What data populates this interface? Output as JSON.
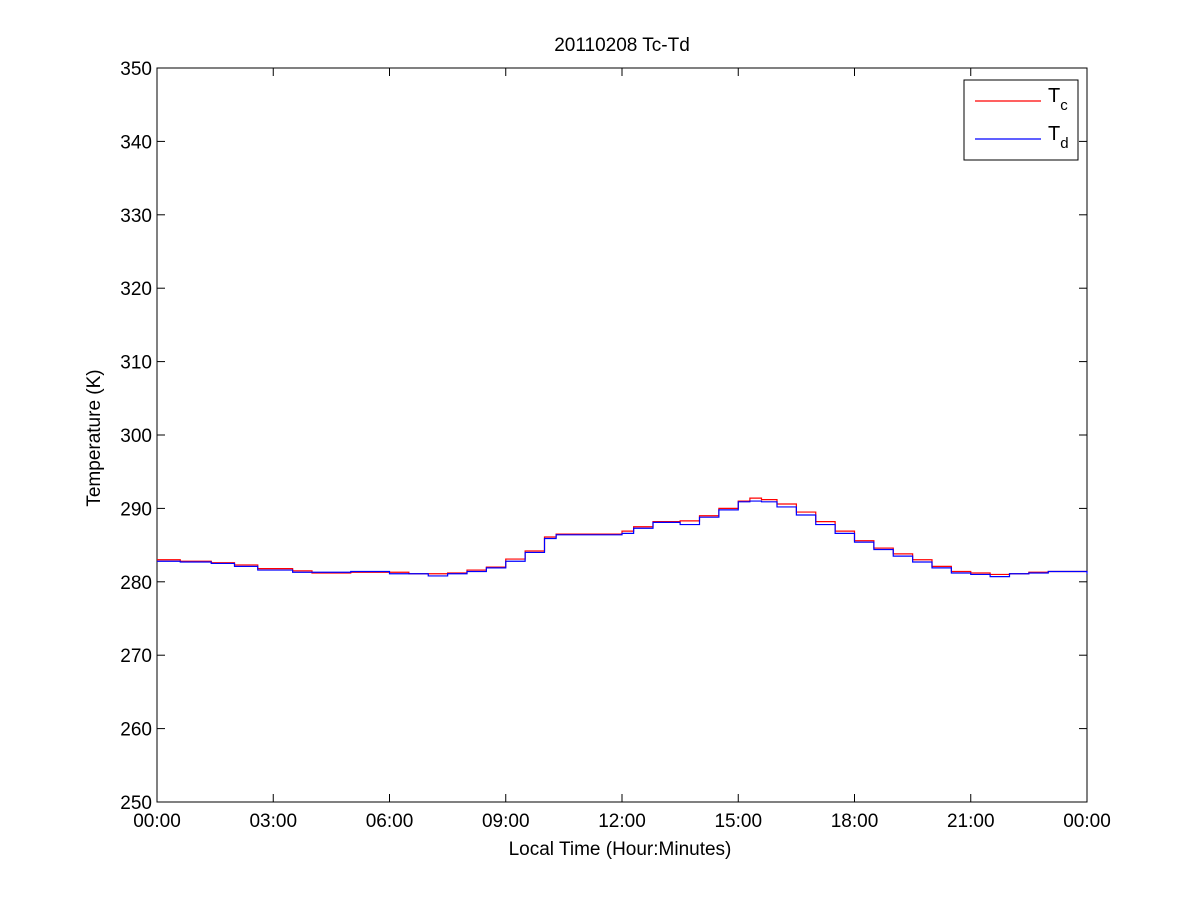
{
  "chart_data": {
    "type": "line",
    "title": "20110208 Tc-Td",
    "xlabel": "Local Time (Hour:Minutes)",
    "ylabel": "Temperature (K)",
    "xlim": [
      0,
      24
    ],
    "ylim": [
      250,
      350
    ],
    "x_ticks": [
      0,
      3,
      6,
      9,
      12,
      15,
      18,
      21,
      24
    ],
    "x_tick_labels": [
      "00:00",
      "03:00",
      "06:00",
      "09:00",
      "12:00",
      "15:00",
      "18:00",
      "21:00",
      "00:00"
    ],
    "y_ticks": [
      250,
      260,
      270,
      280,
      290,
      300,
      310,
      320,
      330,
      340,
      350
    ],
    "y_tick_labels": [
      "250",
      "260",
      "270",
      "280",
      "290",
      "300",
      "310",
      "320",
      "330",
      "340",
      "350"
    ],
    "grid": false,
    "legend_position": "top-right",
    "series": [
      {
        "name": "Tc",
        "legend_main": "T",
        "legend_sub": "c",
        "color": "#ff0000",
        "x": [
          0,
          0.6,
          1.4,
          2.0,
          2.6,
          3.5,
          4.0,
          4.5,
          5.0,
          6.0,
          6.5,
          7.0,
          7.5,
          8.0,
          8.5,
          9.0,
          9.5,
          10.0,
          10.3,
          10.8,
          11.5,
          12.0,
          12.3,
          12.8,
          13.3,
          13.5,
          14.0,
          14.5,
          15.0,
          15.3,
          15.6,
          16.0,
          16.5,
          17.0,
          17.5,
          18.0,
          18.5,
          19.0,
          19.5,
          20.0,
          20.5,
          21.0,
          21.5,
          22.0,
          22.5,
          23.0,
          23.5,
          23.9,
          24.0
        ],
        "y": [
          283.0,
          282.8,
          282.6,
          282.3,
          281.8,
          281.5,
          281.2,
          281.2,
          281.3,
          281.3,
          281.1,
          281.1,
          281.2,
          281.6,
          282.0,
          283.1,
          284.2,
          286.1,
          286.5,
          286.5,
          286.5,
          286.9,
          287.5,
          288.2,
          288.2,
          288.3,
          289.0,
          290.0,
          291.0,
          291.4,
          291.2,
          290.6,
          289.5,
          288.2,
          286.9,
          285.6,
          284.6,
          283.8,
          283.0,
          282.1,
          281.4,
          281.2,
          281.0,
          281.1,
          281.3,
          281.4,
          281.4,
          281.4,
          281.3
        ]
      },
      {
        "name": "Td",
        "legend_main": "T",
        "legend_sub": "d",
        "color": "#0000ff",
        "x": [
          0,
          0.6,
          1.4,
          2.0,
          2.6,
          3.5,
          4.0,
          4.5,
          5.0,
          6.0,
          6.5,
          7.0,
          7.5,
          8.0,
          8.5,
          9.0,
          9.5,
          10.0,
          10.3,
          10.8,
          11.5,
          12.0,
          12.3,
          12.8,
          13.3,
          13.5,
          14.0,
          14.5,
          15.0,
          15.3,
          15.6,
          16.0,
          16.5,
          17.0,
          17.5,
          18.0,
          18.5,
          19.0,
          19.5,
          20.0,
          20.5,
          21.0,
          21.5,
          22.0,
          22.5,
          23.0,
          23.5,
          23.9,
          24.0
        ],
        "y": [
          282.8,
          282.7,
          282.5,
          282.1,
          281.6,
          281.3,
          281.3,
          281.3,
          281.4,
          281.1,
          281.1,
          280.8,
          281.1,
          281.4,
          281.9,
          282.8,
          284.0,
          285.9,
          286.4,
          286.4,
          286.4,
          286.6,
          287.3,
          288.1,
          288.1,
          287.8,
          288.8,
          289.8,
          290.9,
          291.0,
          290.9,
          290.2,
          289.1,
          287.8,
          286.6,
          285.4,
          284.4,
          283.5,
          282.7,
          281.9,
          281.2,
          281.0,
          280.7,
          281.1,
          281.2,
          281.4,
          281.4,
          281.4,
          281.1
        ]
      }
    ]
  }
}
